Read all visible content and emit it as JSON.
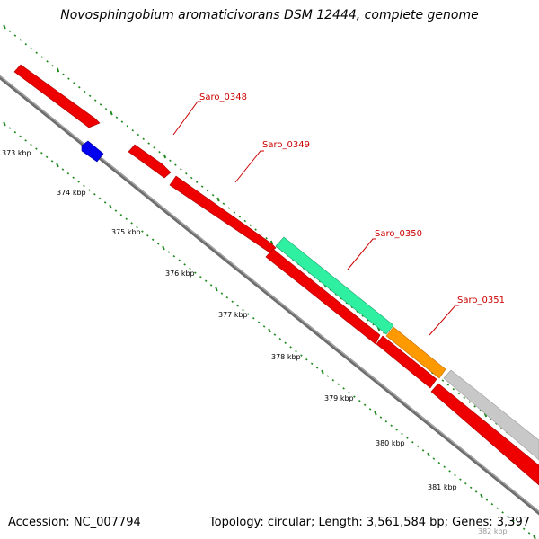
{
  "title": "Novosphingobium aromaticivorans DSM 12444, complete genome",
  "footer": {
    "accession": "Accession: NC_007794",
    "summary": "Topology: circular; Length: 3,561,584 bp; Genes: 3,397"
  },
  "colors": {
    "background": "#ffffff",
    "backbone": "#777777",
    "tick_dots": "#1e8a1e",
    "label_text": "#cc0000",
    "callout_line": "#cc0000",
    "gene_red": "#ee0000",
    "gene_blue": "#0000ee",
    "gene_teal": "#2ef0a0",
    "gene_orange": "#ff9900",
    "gene_gray": "#c8c8c8"
  },
  "scale_labels": [
    "373 kbp",
    "374 kbp",
    "375 kbp",
    "376 kbp",
    "377 kbp",
    "378 kbp",
    "379 kbp",
    "380 kbp",
    "381 kbp",
    "382 kbp"
  ],
  "genes": [
    {
      "name": "Saro_0348",
      "color": "red"
    },
    {
      "name": "Saro_0349",
      "color": "red"
    },
    {
      "name": "Saro_0350",
      "color": "teal"
    },
    {
      "name": "Saro_0351",
      "color": "orange"
    }
  ],
  "other_features": [
    {
      "color": "red"
    },
    {
      "color": "blue"
    },
    {
      "color": "red"
    },
    {
      "color": "red"
    },
    {
      "color": "red"
    },
    {
      "color": "gray"
    }
  ]
}
